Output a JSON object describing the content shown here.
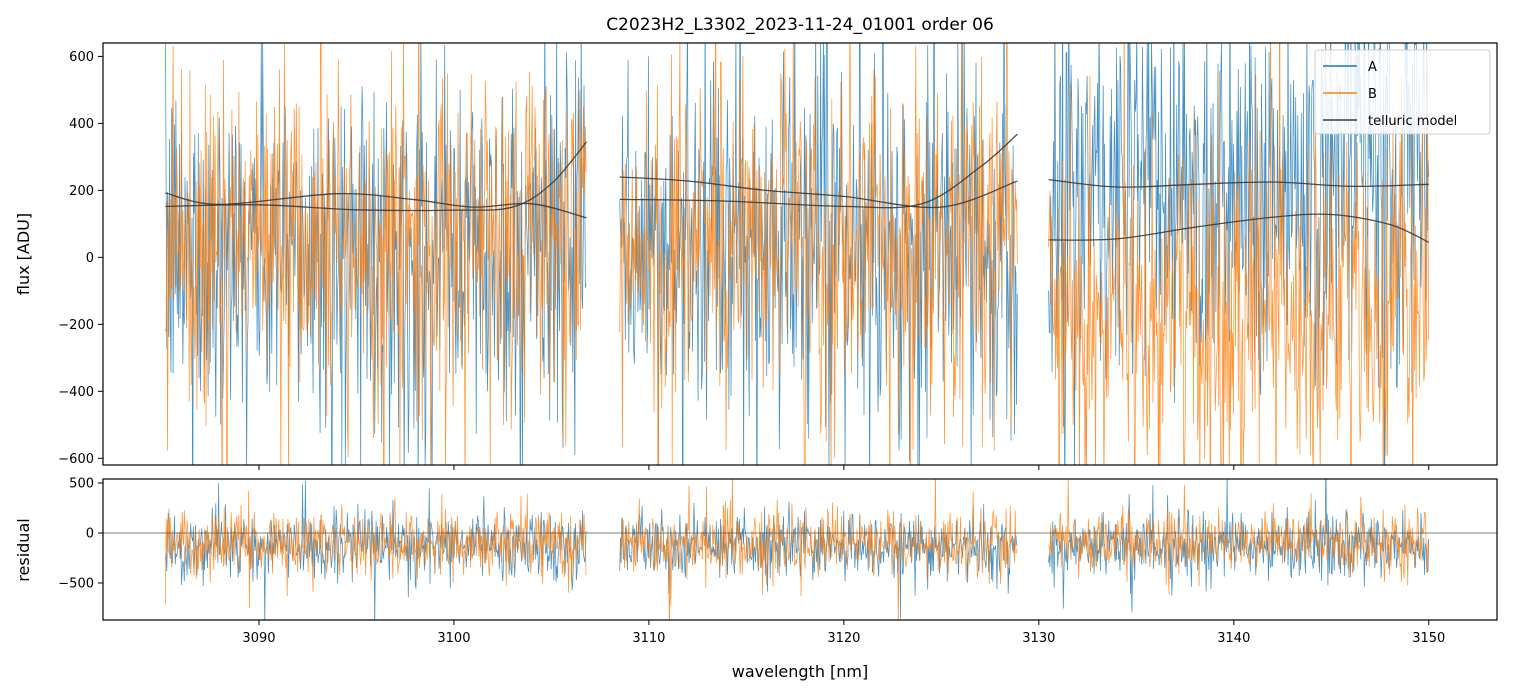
{
  "chart_data": {
    "type": "line",
    "title": "C2023H2_L3302_2023-11-24_01001  order 06",
    "xlabel": "wavelength [nm]",
    "xlim": [
      3082.0,
      3153.5
    ],
    "xticks": [
      "3090",
      "3100",
      "3110",
      "3120",
      "3130",
      "3140",
      "3150"
    ],
    "segments": [
      [
        3085.2,
        3106.8
      ],
      [
        3108.5,
        3128.9
      ],
      [
        3130.5,
        3150.0
      ]
    ],
    "top_panel": {
      "ylabel": "flux [ADU]",
      "ylim": [
        -620,
        640
      ],
      "yticks": [
        "600",
        "400",
        "200",
        "0",
        "−200",
        "−400",
        "−600"
      ],
      "grid": false,
      "legend_position": "top-right"
    },
    "bottom_panel": {
      "ylabel": "residual",
      "ylim": [
        -870,
        540
      ],
      "yticks": [
        "500",
        "0",
        "−500"
      ],
      "zero_line": true
    },
    "series": [
      {
        "name": "A",
        "color": "#1f77b4",
        "flux_profile": [
          {
            "segment": 0,
            "center": 20,
            "spread": 260
          },
          {
            "segment": 1,
            "center": 20,
            "spread": 270
          },
          {
            "segment": 2,
            "center": 230,
            "spread": 300
          }
        ],
        "residual_profile": {
          "center": -130,
          "spread": 160
        }
      },
      {
        "name": "B",
        "color": "#ff7f0e",
        "flux_profile": [
          {
            "segment": 0,
            "center": 50,
            "spread": 250
          },
          {
            "segment": 1,
            "center": 50,
            "spread": 250
          },
          {
            "segment": 2,
            "center": -140,
            "spread": 260
          }
        ],
        "residual_profile": {
          "center": -100,
          "spread": 160
        }
      }
    ],
    "telluric_model": {
      "name": "telluric model",
      "color": "#3a3a3a",
      "curves": [
        {
          "segment": 0,
          "points": [
            [
              3085.2,
              192
            ],
            [
              3088,
              158
            ],
            [
              3094,
              190
            ],
            [
              3098,
              172
            ],
            [
              3101,
              150
            ],
            [
              3104,
              160
            ],
            [
              3106.8,
              118
            ]
          ]
        },
        {
          "segment": 0,
          "points": [
            [
              3085.2,
              152
            ],
            [
              3090,
              157
            ],
            [
              3095,
              142
            ],
            [
              3100,
              141
            ],
            [
              3103,
              150
            ],
            [
              3105,
              220
            ],
            [
              3106.8,
              345
            ]
          ]
        },
        {
          "segment": 1,
          "points": [
            [
              3108.5,
              240
            ],
            [
              3112,
              228
            ],
            [
              3116,
              200
            ],
            [
              3120,
              182
            ],
            [
              3125,
              150
            ],
            [
              3128.9,
              228
            ]
          ]
        },
        {
          "segment": 1,
          "points": [
            [
              3108.5,
              173
            ],
            [
              3114,
              168
            ],
            [
              3120,
              152
            ],
            [
              3124,
              160
            ],
            [
              3127,
              270
            ],
            [
              3128.9,
              368
            ]
          ]
        },
        {
          "segment": 2,
          "points": [
            [
              3130.5,
              232
            ],
            [
              3134,
              210
            ],
            [
              3138,
              218
            ],
            [
              3142,
              225
            ],
            [
              3146,
              212
            ],
            [
              3150.0,
              218
            ]
          ]
        },
        {
          "segment": 2,
          "points": [
            [
              3130.5,
              52
            ],
            [
              3134,
              55
            ],
            [
              3138,
              90
            ],
            [
              3142,
              120
            ],
            [
              3145,
              128
            ],
            [
              3148,
              98
            ],
            [
              3150.0,
              45
            ]
          ]
        }
      ]
    },
    "legend": [
      "A",
      "B",
      "telluric model"
    ]
  }
}
